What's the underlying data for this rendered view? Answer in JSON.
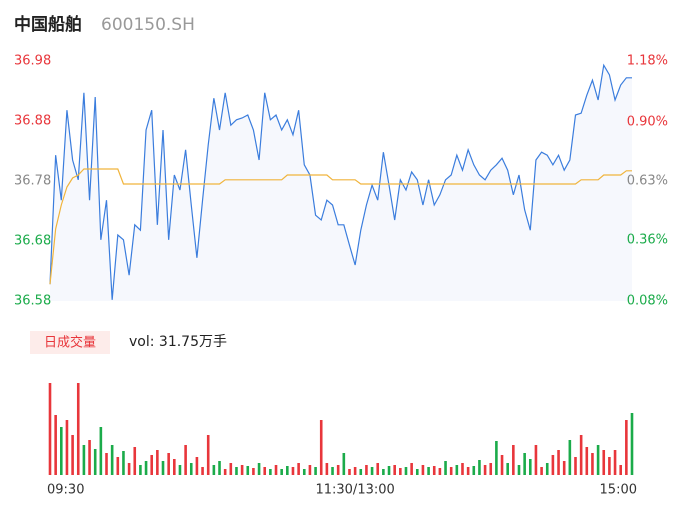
{
  "chart_data": {
    "type": "intraday",
    "title": "中国船舶",
    "subtitle": "600150.SH",
    "volume_button": "日成交量",
    "volume_readout": "vol: 31.75万手",
    "up_color": "#e8363b",
    "down_color": "#1bab4a",
    "flat_color": "#888888",
    "categories": [
      "09:30",
      null,
      null,
      null,
      null,
      null,
      null,
      null,
      null,
      null,
      null,
      null,
      null,
      null,
      null,
      null,
      null,
      null,
      null,
      null,
      null,
      null,
      null,
      null,
      null,
      null,
      null,
      null,
      null,
      null,
      null,
      null,
      null,
      null,
      null,
      null,
      null,
      null,
      null,
      null,
      null,
      null,
      null,
      null,
      null,
      null,
      null,
      null,
      null,
      null,
      null,
      null,
      null,
      null,
      "11:30/13:00",
      null,
      null,
      null,
      null,
      null,
      null,
      null,
      null,
      null,
      null,
      null,
      null,
      null,
      null,
      null,
      null,
      null,
      null,
      null,
      null,
      null,
      null,
      null,
      null,
      null,
      null,
      null,
      null,
      null,
      null,
      null,
      null,
      null,
      null,
      null,
      null,
      null,
      null,
      null,
      null,
      null,
      null,
      null,
      null,
      null,
      null,
      null,
      null,
      "15:00"
    ],
    "ylim": [
      36.58,
      36.98
    ],
    "yticks": [
      36.98,
      36.88,
      36.78,
      36.68,
      36.58
    ],
    "y2lim": [
      0.08,
      1.18
    ],
    "y2ticks": [
      {
        "value": 1.18,
        "label": "1.18%"
      },
      {
        "value": 0.9,
        "label": "0.90%"
      },
      {
        "value": 0.63,
        "label": "0.63%"
      },
      {
        "value": 0.36,
        "label": "0.36%"
      },
      {
        "value": 0.08,
        "label": "0.08%"
      }
    ],
    "series": [
      {
        "color": "#3b7ddd",
        "values": [
          36.608,
          36.823,
          36.748,
          36.898,
          36.815,
          36.782,
          36.927,
          36.748,
          36.92,
          36.682,
          36.748,
          36.582,
          36.69,
          36.682,
          36.623,
          36.707,
          36.698,
          36.865,
          36.898,
          36.707,
          36.865,
          36.682,
          36.79,
          36.765,
          36.832,
          36.74,
          36.652,
          36.748,
          36.84,
          36.918,
          36.865,
          36.927,
          36.873,
          36.882,
          36.885,
          36.89,
          36.865,
          36.815,
          36.927,
          36.882,
          36.89,
          36.865,
          36.882,
          36.857,
          36.898,
          36.807,
          36.79,
          36.723,
          36.715,
          36.748,
          36.74,
          36.707,
          36.707,
          36.673,
          36.64,
          36.698,
          36.74,
          36.773,
          36.748,
          36.828,
          36.773,
          36.715,
          36.782,
          36.765,
          36.795,
          36.782,
          36.74,
          36.782,
          36.74,
          36.757,
          36.782,
          36.79,
          36.823,
          36.798,
          36.832,
          36.807,
          36.79,
          36.782,
          36.798,
          36.807,
          36.818,
          36.798,
          36.757,
          36.79,
          36.732,
          36.698,
          36.815,
          36.828,
          36.823,
          36.807,
          36.823,
          36.798,
          36.815,
          36.89,
          36.893,
          36.923,
          36.948,
          36.915,
          36.973,
          36.957,
          36.915,
          36.94,
          36.952,
          36.952
        ]
      },
      {
        "color": "#f0b43c",
        "values": [
          36.608,
          36.7,
          36.74,
          36.77,
          36.785,
          36.79,
          36.8,
          36.8,
          36.8,
          36.8,
          36.8,
          36.8,
          36.8,
          36.775,
          36.775,
          36.775,
          36.775,
          36.775,
          36.775,
          36.775,
          36.775,
          36.775,
          36.775,
          36.775,
          36.775,
          36.775,
          36.775,
          36.775,
          36.775,
          36.775,
          36.775,
          36.782,
          36.782,
          36.782,
          36.782,
          36.782,
          36.782,
          36.782,
          36.782,
          36.782,
          36.782,
          36.782,
          36.79,
          36.79,
          36.79,
          36.79,
          36.79,
          36.79,
          36.79,
          36.79,
          36.782,
          36.782,
          36.782,
          36.782,
          36.782,
          36.775,
          36.775,
          36.775,
          36.775,
          36.775,
          36.775,
          36.775,
          36.775,
          36.775,
          36.775,
          36.775,
          36.775,
          36.775,
          36.775,
          36.775,
          36.775,
          36.775,
          36.775,
          36.775,
          36.775,
          36.775,
          36.775,
          36.775,
          36.775,
          36.775,
          36.775,
          36.775,
          36.775,
          36.775,
          36.775,
          36.775,
          36.775,
          36.775,
          36.775,
          36.775,
          36.775,
          36.775,
          36.775,
          36.775,
          36.782,
          36.782,
          36.782,
          36.782,
          36.79,
          36.79,
          36.79,
          36.79,
          36.797,
          36.797
        ]
      }
    ],
    "volume": {
      "values": [
        92,
        60,
        48,
        55,
        40,
        92,
        30,
        35,
        26,
        48,
        22,
        30,
        18,
        24,
        12,
        28,
        10,
        14,
        20,
        25,
        14,
        22,
        16,
        10,
        30,
        12,
        18,
        8,
        40,
        10,
        14,
        6,
        12,
        8,
        10,
        9,
        7,
        12,
        8,
        6,
        10,
        6,
        9,
        8,
        12,
        6,
        10,
        8,
        55,
        12,
        8,
        10,
        22,
        6,
        8,
        6,
        10,
        8,
        12,
        6,
        9,
        10,
        7,
        8,
        12,
        6,
        10,
        8,
        9,
        7,
        14,
        8,
        10,
        12,
        8,
        9,
        15,
        10,
        12,
        34,
        20,
        12,
        30,
        10,
        22,
        16,
        30,
        8,
        12,
        20,
        25,
        14,
        35,
        18,
        40,
        28,
        22,
        30,
        25,
        18,
        25,
        10,
        55,
        62
      ],
      "colors": [
        "#e8363b",
        "#e8363b",
        "#1bab4a",
        "#e8363b",
        "#e8363b",
        "#e8363b",
        "#1bab4a",
        "#e8363b",
        "#1bab4a",
        "#1bab4a",
        "#e8363b",
        "#1bab4a",
        "#e8363b",
        "#1bab4a",
        "#e8363b",
        "#e8363b",
        "#1bab4a",
        "#1bab4a",
        "#e8363b",
        "#e8363b",
        "#1bab4a",
        "#e8363b",
        "#e8363b",
        "#1bab4a",
        "#e8363b",
        "#1bab4a",
        "#e8363b",
        "#e8363b",
        "#e8363b",
        "#1bab4a",
        "#1bab4a",
        "#e8363b",
        "#e8363b",
        "#1bab4a",
        "#e8363b",
        "#1bab4a",
        "#e8363b",
        "#1bab4a",
        "#e8363b",
        "#1bab4a",
        "#e8363b",
        "#1bab4a",
        "#1bab4a",
        "#e8363b",
        "#e8363b",
        "#1bab4a",
        "#e8363b",
        "#1bab4a",
        "#e8363b",
        "#e8363b",
        "#1bab4a",
        "#e8363b",
        "#1bab4a",
        "#e8363b",
        "#e8363b",
        "#1bab4a",
        "#e8363b",
        "#1bab4a",
        "#e8363b",
        "#1bab4a",
        "#1bab4a",
        "#e8363b",
        "#e8363b",
        "#1bab4a",
        "#e8363b",
        "#1bab4a",
        "#e8363b",
        "#1bab4a",
        "#e8363b",
        "#e8363b",
        "#1bab4a",
        "#e8363b",
        "#1bab4a",
        "#e8363b",
        "#e8363b",
        "#1bab4a",
        "#1bab4a",
        "#e8363b",
        "#e8363b",
        "#1bab4a",
        "#e8363b",
        "#1bab4a",
        "#e8363b",
        "#1bab4a",
        "#1bab4a",
        "#1bab4a",
        "#e8363b",
        "#e8363b",
        "#1bab4a",
        "#e8363b",
        "#e8363b",
        "#e8363b",
        "#1bab4a",
        "#e8363b",
        "#e8363b",
        "#e8363b",
        "#e8363b",
        "#1bab4a",
        "#e8363b",
        "#e8363b",
        "#e8363b",
        "#e8363b",
        "#e8363b",
        "#1bab4a"
      ]
    }
  }
}
